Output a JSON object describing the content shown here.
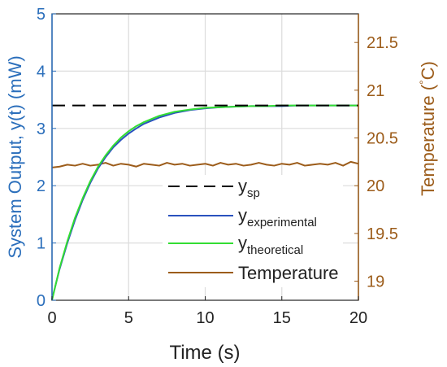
{
  "chart_data": {
    "type": "line",
    "xlabel": "Time (s)",
    "ylabel_left": "System Output, y(t) (mW)",
    "ylabel_right_text": "Temperature (",
    "ylabel_right_deg": "°",
    "ylabel_right_unit": "C)",
    "xlim": [
      0,
      20
    ],
    "ylim_left": [
      0,
      5
    ],
    "ylim_right": [
      18.8,
      21.8
    ],
    "x_ticks": [
      "0",
      "5",
      "10",
      "15",
      "20"
    ],
    "y_left_ticks": [
      "0",
      "1",
      "2",
      "3",
      "4",
      "5"
    ],
    "y_right_ticks": [
      "19",
      "19.5",
      "20",
      "20.5",
      "21",
      "21.5"
    ],
    "grid": true,
    "legend_position": "center-right",
    "legend": {
      "sp_base": "y",
      "sp_sub": "sp",
      "exp_base": "y",
      "exp_sub": "experimental",
      "theo_base": "y",
      "theo_sub": "theoretical",
      "temp": "Temperature"
    },
    "colors": {
      "left_axis": "#2a6ebb",
      "right_axis": "#9c5c1a",
      "setpoint": "#000000",
      "experimental": "#2a52be",
      "theoretical": "#33dd33",
      "temperature": "#9c5c1a"
    },
    "series": [
      {
        "name": "y_sp",
        "axis": "left",
        "style": "dashed",
        "x": [
          0,
          20
        ],
        "y": [
          3.4,
          3.4
        ]
      },
      {
        "name": "y_experimental",
        "axis": "left",
        "x": [
          0,
          0.5,
          1,
          1.5,
          2,
          2.5,
          3,
          3.5,
          4,
          4.5,
          5,
          5.5,
          6,
          7,
          8,
          9,
          10,
          11,
          12,
          13,
          14,
          15,
          16,
          17,
          18,
          19,
          20
        ],
        "y": [
          0.02,
          0.55,
          1.0,
          1.4,
          1.75,
          2.05,
          2.3,
          2.5,
          2.67,
          2.8,
          2.91,
          3.0,
          3.08,
          3.19,
          3.27,
          3.32,
          3.35,
          3.37,
          3.38,
          3.39,
          3.39,
          3.39,
          3.4,
          3.4,
          3.4,
          3.4,
          3.4
        ]
      },
      {
        "name": "y_theoretical",
        "axis": "left",
        "x": [
          0,
          0.5,
          1,
          1.5,
          2,
          2.5,
          3,
          3.5,
          4,
          4.5,
          5,
          5.5,
          6,
          7,
          8,
          9,
          10,
          11,
          12,
          13,
          14,
          15,
          16,
          17,
          18,
          19,
          20
        ],
        "y": [
          0.0,
          0.57,
          1.03,
          1.44,
          1.78,
          2.08,
          2.33,
          2.53,
          2.7,
          2.84,
          2.95,
          3.04,
          3.11,
          3.22,
          3.29,
          3.33,
          3.36,
          3.37,
          3.38,
          3.39,
          3.39,
          3.4,
          3.4,
          3.4,
          3.4,
          3.4,
          3.4
        ]
      },
      {
        "name": "Temperature",
        "axis": "right",
        "x": [
          0,
          0.5,
          1,
          1.5,
          2,
          2.5,
          3,
          3.5,
          4,
          4.5,
          5,
          5.5,
          6,
          6.5,
          7,
          7.5,
          8,
          8.5,
          9,
          9.5,
          10,
          10.5,
          11,
          11.5,
          12,
          12.5,
          13,
          13.5,
          14,
          14.5,
          15,
          15.5,
          16,
          16.5,
          17,
          17.5,
          18,
          18.5,
          19,
          19.5,
          20
        ],
        "y": [
          20.19,
          20.2,
          20.22,
          20.21,
          20.23,
          20.21,
          20.22,
          20.24,
          20.21,
          20.23,
          20.22,
          20.2,
          20.23,
          20.22,
          20.21,
          20.24,
          20.22,
          20.23,
          20.21,
          20.22,
          20.23,
          20.21,
          20.24,
          20.22,
          20.23,
          20.21,
          20.22,
          20.24,
          20.22,
          20.21,
          20.23,
          20.22,
          20.24,
          20.21,
          20.22,
          20.23,
          20.22,
          20.24,
          20.21,
          20.25,
          20.23
        ]
      }
    ]
  }
}
